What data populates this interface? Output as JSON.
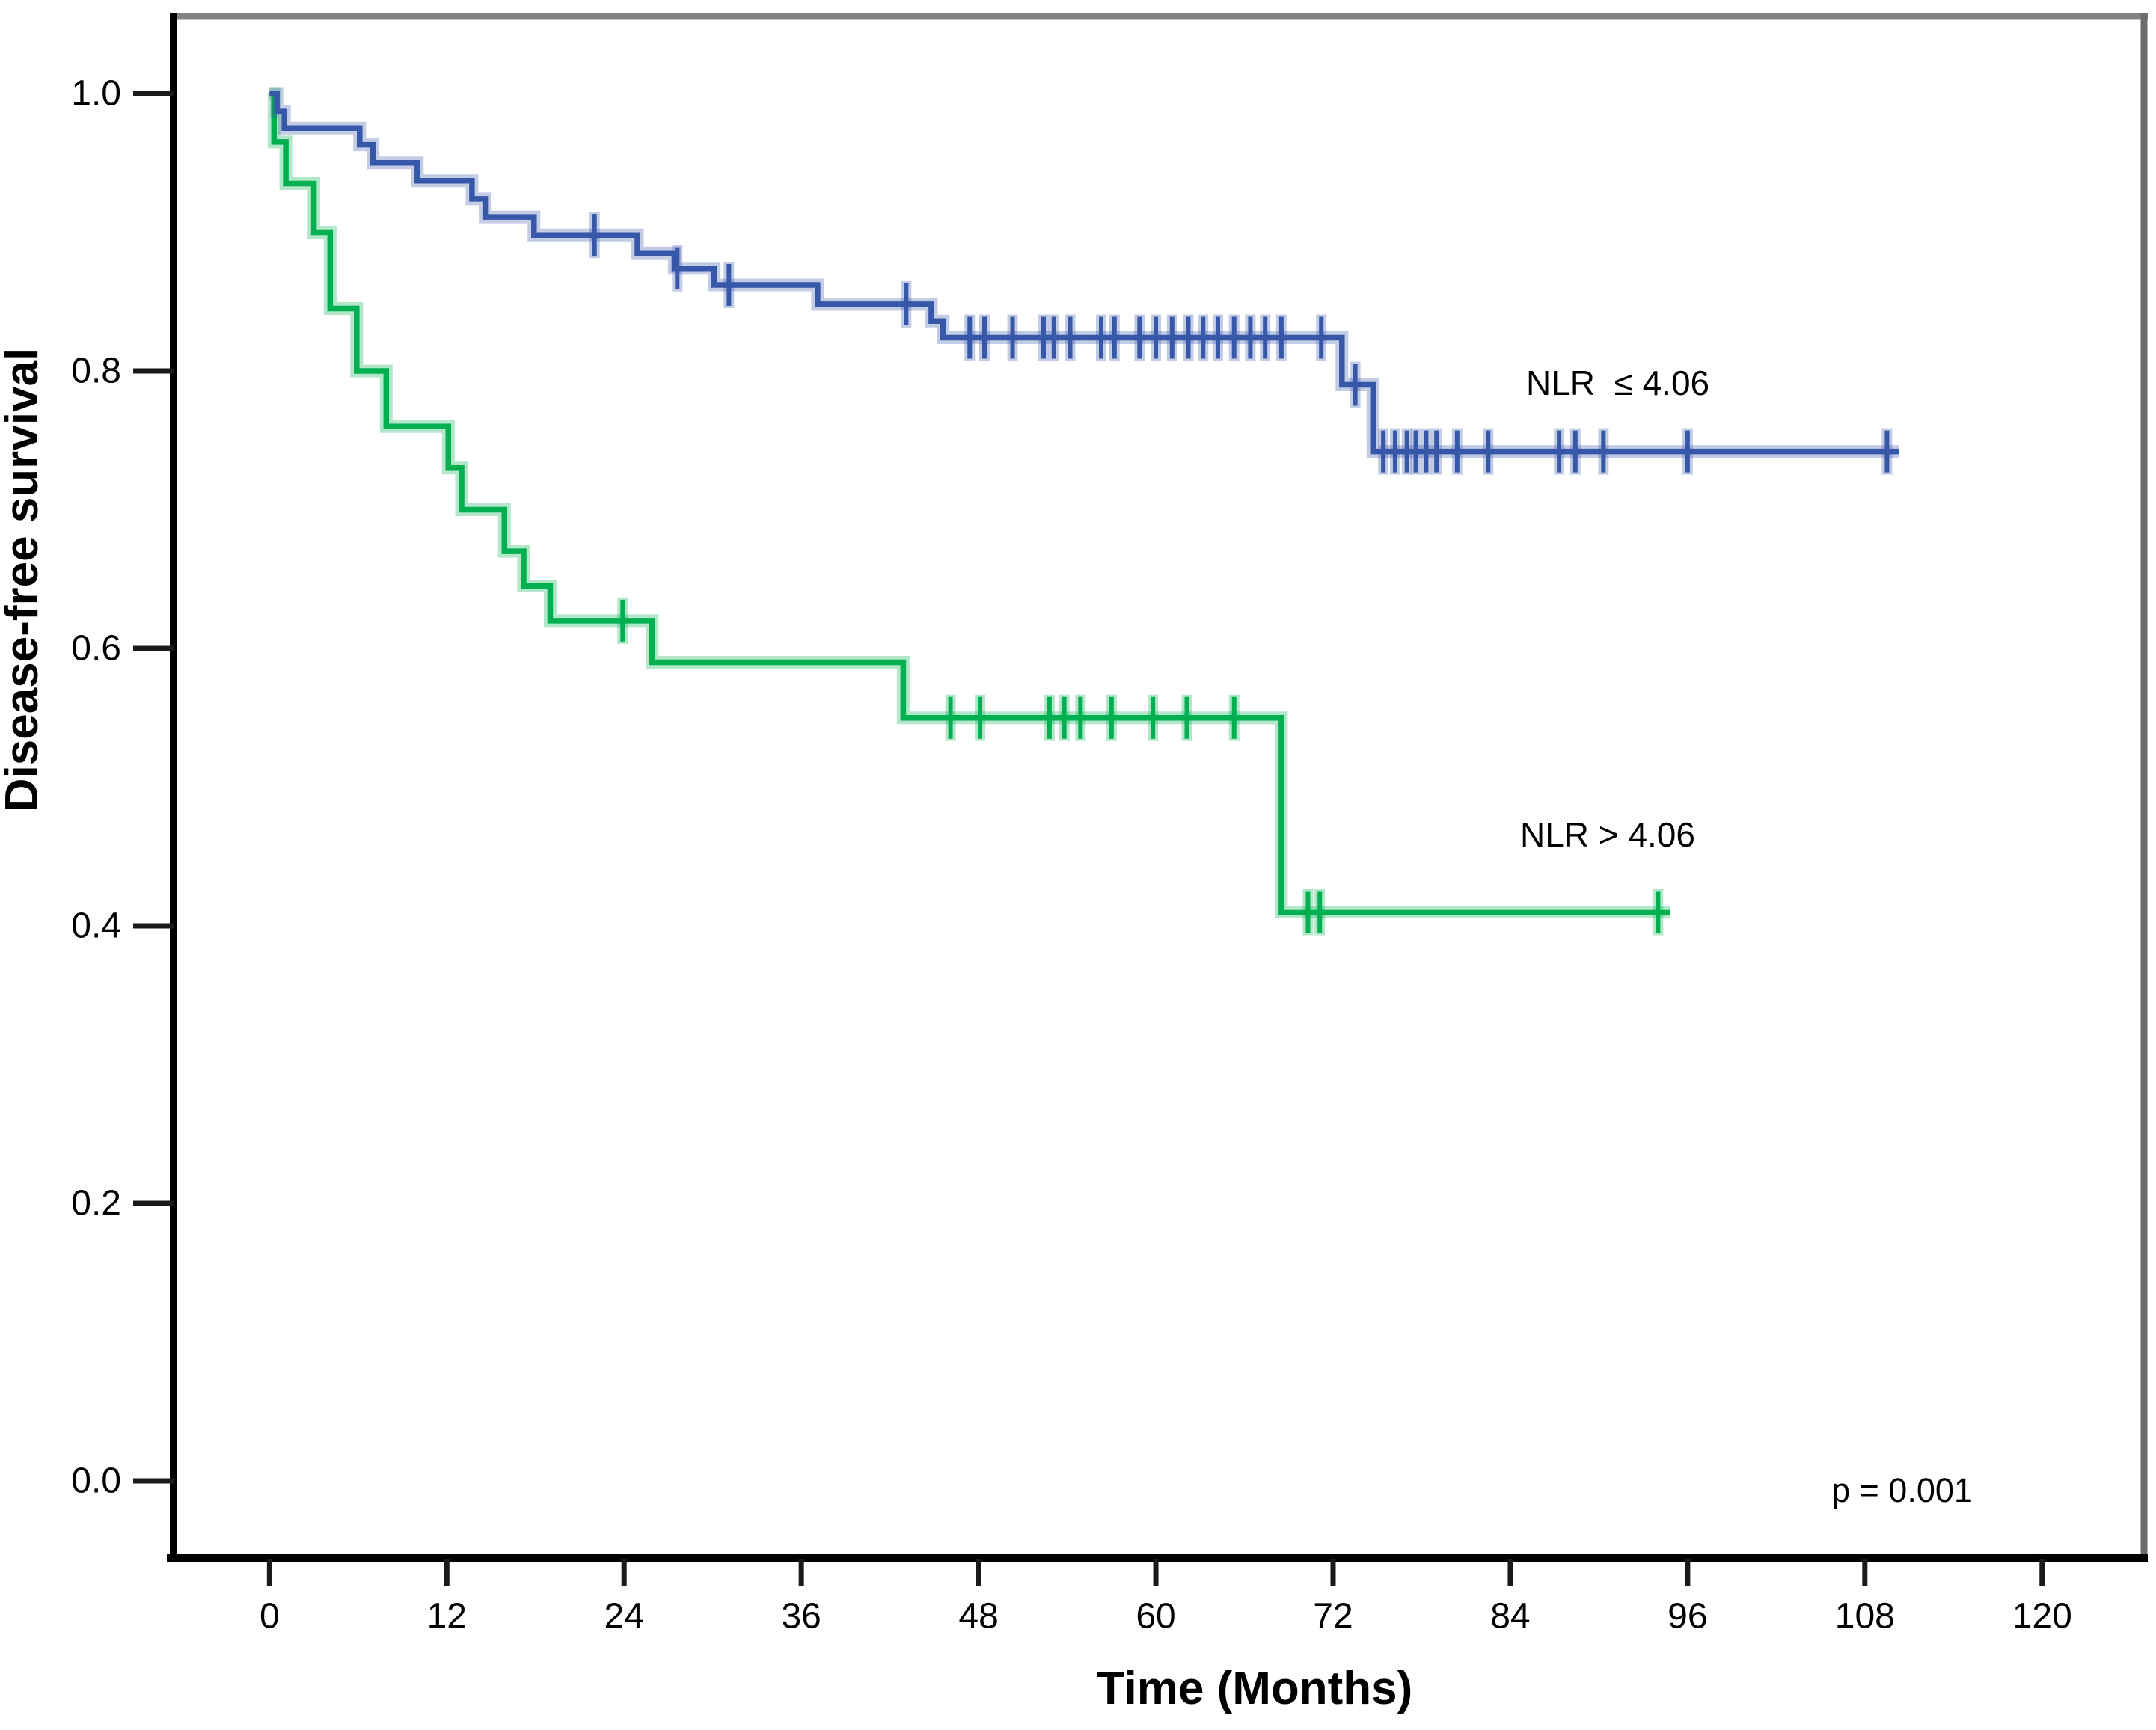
{
  "figure": {
    "background": "#FFFFFF",
    "p_value_text": "p = 0.001"
  },
  "chart_data": {
    "type": "line",
    "subtype": "kaplan-meier-step",
    "title": "",
    "xlabel": "Time (Months)",
    "ylabel": "Disease-free survival",
    "xlim": [
      -6.5,
      126.9
    ],
    "ylim": [
      -0.0555,
      1.0555
    ],
    "x_ticks": [
      0,
      12,
      24,
      36,
      48,
      60,
      72,
      84,
      96,
      108,
      120
    ],
    "y_tick_values": [
      0.0,
      0.2,
      0.4,
      0.6,
      0.8,
      1.0
    ],
    "y_tick_labels": [
      "0.0",
      "0.2",
      "0.4",
      "0.6",
      "0.8",
      "1.0"
    ],
    "grid": false,
    "legend": "inline-labels",
    "frame_colors": {
      "top": "#828282",
      "right": "#6B6B6B",
      "left": "#000000",
      "bottom": "#000000"
    },
    "tick_color": "#1A1A1A",
    "annotations": [
      {
        "id": "nlr-low-label",
        "text": "NLR  ≤ 4.06",
        "x": 85,
        "y": 0.8
      },
      {
        "id": "nlr-high-label",
        "text": "NLR > 4.06",
        "x": 85,
        "y": 0.47
      },
      {
        "id": "p-value",
        "text": "p = 0.001",
        "x": 106,
        "y": 0.0
      }
    ],
    "series": [
      {
        "name": "NLR ≤ 4.06",
        "color": "#3757A8",
        "halo_opacity": 0.3,
        "steps": [
          [
            0,
            1.0
          ],
          [
            0.5,
            0.987
          ],
          [
            1.0,
            0.975
          ],
          [
            6.1,
            0.963
          ],
          [
            7.0,
            0.95
          ],
          [
            10.0,
            0.937
          ],
          [
            13.7,
            0.924
          ],
          [
            14.6,
            0.911
          ],
          [
            17.9,
            0.898
          ],
          [
            24.9,
            0.885
          ],
          [
            27.4,
            0.874
          ],
          [
            30.1,
            0.862
          ],
          [
            37.1,
            0.848
          ],
          [
            44.8,
            0.836
          ],
          [
            45.6,
            0.824
          ],
          [
            72.6,
            0.79
          ],
          [
            74.7,
            0.742
          ]
        ],
        "end_time": 110.3,
        "censors": [
          [
            22.0,
            0.898
          ],
          [
            27.6,
            0.874
          ],
          [
            31.1,
            0.862
          ],
          [
            43.1,
            0.848
          ],
          [
            47.4,
            0.824
          ],
          [
            48.4,
            0.824
          ],
          [
            50.3,
            0.824
          ],
          [
            52.4,
            0.824
          ],
          [
            53.1,
            0.824
          ],
          [
            54.2,
            0.824
          ],
          [
            56.3,
            0.824
          ],
          [
            57.2,
            0.824
          ],
          [
            58.9,
            0.824
          ],
          [
            60.0,
            0.824
          ],
          [
            61.1,
            0.824
          ],
          [
            62.2,
            0.824
          ],
          [
            63.2,
            0.824
          ],
          [
            64.2,
            0.824
          ],
          [
            65.3,
            0.824
          ],
          [
            66.4,
            0.824
          ],
          [
            67.4,
            0.824
          ],
          [
            68.5,
            0.824
          ],
          [
            71.2,
            0.824
          ],
          [
            73.5,
            0.79
          ],
          [
            75.4,
            0.742
          ],
          [
            76.2,
            0.742
          ],
          [
            77.0,
            0.742
          ],
          [
            77.6,
            0.742
          ],
          [
            78.3,
            0.742
          ],
          [
            79.0,
            0.742
          ],
          [
            80.4,
            0.742
          ],
          [
            82.5,
            0.742
          ],
          [
            87.3,
            0.742
          ],
          [
            88.4,
            0.742
          ],
          [
            90.3,
            0.742
          ],
          [
            96.0,
            0.742
          ],
          [
            109.5,
            0.742
          ]
        ]
      },
      {
        "name": "NLR > 4.06",
        "color": "#00B050",
        "halo_opacity": 0.3,
        "steps": [
          [
            0,
            1.0
          ],
          [
            0.3,
            0.965
          ],
          [
            1.1,
            0.935
          ],
          [
            3.0,
            0.9
          ],
          [
            4.1,
            0.845
          ],
          [
            5.9,
            0.8
          ],
          [
            7.9,
            0.76
          ],
          [
            12.1,
            0.73
          ],
          [
            13.0,
            0.7
          ],
          [
            15.9,
            0.67
          ],
          [
            17.2,
            0.645
          ],
          [
            19.0,
            0.62
          ],
          [
            25.9,
            0.59
          ],
          [
            42.9,
            0.55
          ],
          [
            68.5,
            0.41
          ]
        ],
        "end_time": 94.8,
        "censors": [
          [
            23.9,
            0.62
          ],
          [
            46.1,
            0.55
          ],
          [
            48.1,
            0.55
          ],
          [
            52.8,
            0.55
          ],
          [
            53.8,
            0.55
          ],
          [
            54.9,
            0.55
          ],
          [
            57.0,
            0.55
          ],
          [
            59.8,
            0.55
          ],
          [
            62.1,
            0.55
          ],
          [
            65.3,
            0.55
          ],
          [
            70.3,
            0.41
          ],
          [
            71.1,
            0.41
          ],
          [
            94.0,
            0.41
          ]
        ]
      }
    ]
  }
}
